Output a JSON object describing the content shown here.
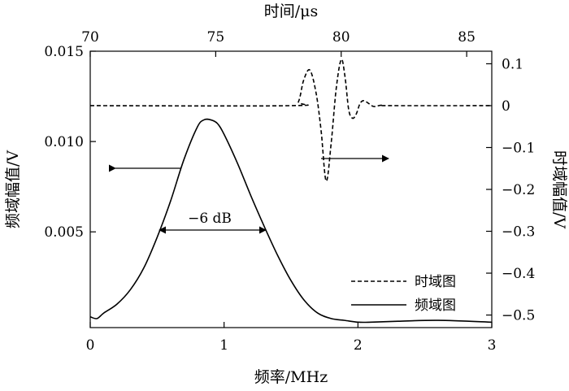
{
  "chart_data": {
    "type": "line",
    "xlabel": "频率/MHz",
    "ylabel": "频域幅值/V",
    "x2label": "时间/μs",
    "y2label": "时域幅值/V",
    "xlim": [
      0,
      3
    ],
    "ylim": [
      -0.0003,
      0.015
    ],
    "x2lim": [
      70,
      86
    ],
    "y2lim": [
      -0.53,
      0.13
    ],
    "xticks": [
      0,
      1,
      2,
      3
    ],
    "yticks": [
      0.005,
      0.01,
      0.015
    ],
    "yticklabels": [
      "0.005",
      "0.010",
      "0.015"
    ],
    "x2ticks": [
      70,
      75,
      80,
      85
    ],
    "y2ticks": [
      0.1,
      0,
      -0.1,
      -0.2,
      -0.3,
      -0.4,
      -0.5
    ],
    "y2ticklabels": [
      "0.1",
      "0",
      "−0.1",
      "−0.2",
      "−0.3",
      "−0.4",
      "−0.5"
    ],
    "grid": false,
    "legend_position": "bottom-right",
    "annotation": "−6 dB",
    "series": [
      {
        "name": "时域图",
        "axis": "secondary",
        "style": "dashed",
        "x": [
          70,
          78.0,
          78.3,
          78.5,
          78.75,
          79.0,
          79.2,
          79.4,
          79.6,
          79.8,
          80.0,
          80.15,
          80.3,
          80.45,
          80.6,
          80.75,
          80.9,
          81.1,
          81.3,
          81.6,
          82.0,
          86
        ],
        "y": [
          0,
          0,
          0.01,
          0.06,
          0.085,
          0.03,
          -0.06,
          -0.18,
          -0.09,
          0.04,
          0.11,
          0.07,
          -0.01,
          -0.03,
          -0.02,
          0.005,
          0.012,
          0.005,
          -0.002,
          0.001,
          0,
          0
        ]
      },
      {
        "name": "频域图",
        "axis": "primary",
        "style": "solid",
        "x": [
          0,
          0.05,
          0.1,
          0.2,
          0.3,
          0.4,
          0.5,
          0.6,
          0.7,
          0.8,
          0.85,
          0.9,
          0.95,
          1.0,
          1.1,
          1.2,
          1.3,
          1.4,
          1.5,
          1.6,
          1.7,
          1.8,
          1.9,
          2.0,
          2.1,
          2.3,
          2.6,
          3.0
        ],
        "y": [
          0.0003,
          0.0002,
          0.0005,
          0.001,
          0.0018,
          0.003,
          0.0047,
          0.0067,
          0.009,
          0.0108,
          0.0112,
          0.0112,
          0.011,
          0.0104,
          0.0088,
          0.007,
          0.0053,
          0.0037,
          0.0023,
          0.0012,
          0.0005,
          0.0002,
          0.0001,
          0.0,
          0.0,
          5e-05,
          0.0001,
          0.0
        ]
      }
    ]
  }
}
